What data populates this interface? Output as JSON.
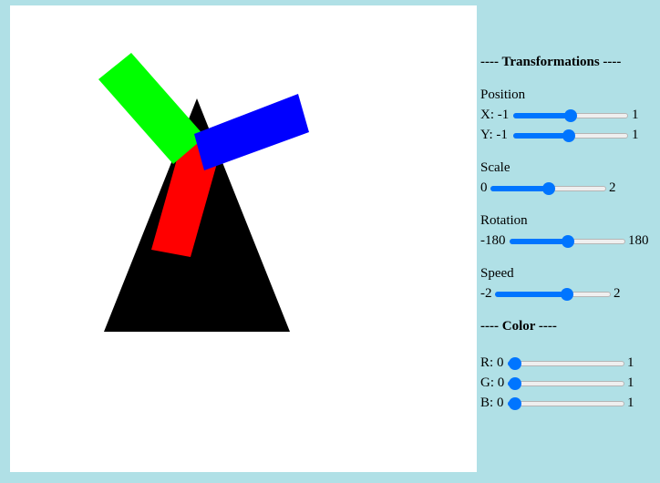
{
  "canvas": {
    "background": "#ffffff",
    "shapes": {
      "triangle_color": "#000000",
      "red_bar_color": "#ff0000",
      "green_bar_color": "#00ff00",
      "blue_bar_color": "#0000ff"
    }
  },
  "panel": {
    "transformations_heading": "---- Transformations ----",
    "position_label": "Position",
    "x": {
      "label": "X:",
      "min": "-1",
      "max": "1",
      "value": 0.5
    },
    "y": {
      "label": "Y:",
      "min": "-1",
      "max": "1",
      "value": 0.48
    },
    "scale_label": "Scale",
    "scale": {
      "min": "0",
      "max": "2",
      "value": 0.5
    },
    "rotation_label": "Rotation",
    "rotation": {
      "min": "-180",
      "max": "180",
      "value": 0.5
    },
    "speed_label": "Speed",
    "speed": {
      "min": "-2",
      "max": "2",
      "value": 0.62
    },
    "color_heading": "---- Color ----",
    "r": {
      "label": "R:",
      "min": "0",
      "max": "1",
      "value": 0
    },
    "g": {
      "label": "G:",
      "min": "0",
      "max": "1",
      "value": 0
    },
    "b": {
      "label": "B:",
      "min": "0",
      "max": "1",
      "value": 0
    },
    "accent": "#0075ff"
  }
}
